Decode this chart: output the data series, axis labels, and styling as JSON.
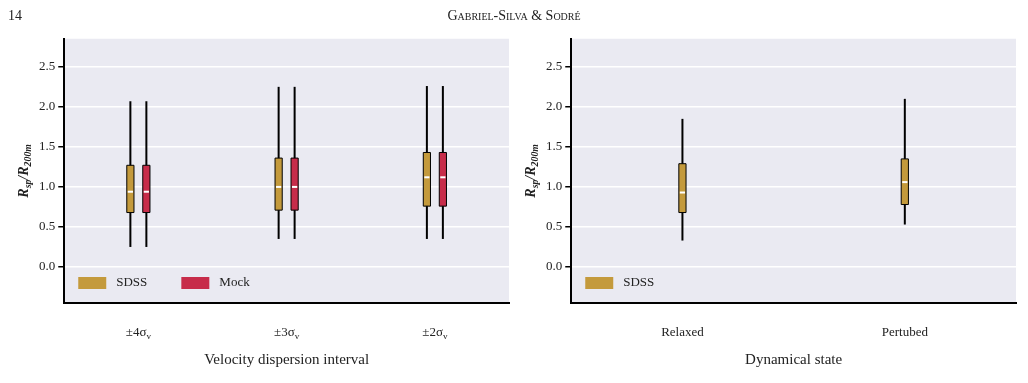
{
  "chart_data": [
    {
      "type": "box",
      "title": "Gabriel-Silva & Sodré",
      "annotations": [
        "14"
      ],
      "xlabel": "Velocity dispersion interval",
      "ylabel": "R$_{sp}$/R$_{200m}$",
      "categories": [
        "±4σ$_{v}$",
        "±3σ$_{v}$",
        "±2σ$_{v}$"
      ],
      "series": [
        {
          "name": "SDSS",
          "color": "#c49a3c",
          "boxes": [
            {
              "low": 0.25,
              "q1": 0.68,
              "median": 0.94,
              "q3": 1.27,
              "high": 2.07
            },
            {
              "low": 0.35,
              "q1": 0.71,
              "median": 1.0,
              "q3": 1.36,
              "high": 2.25
            },
            {
              "low": 0.35,
              "q1": 0.76,
              "median": 1.12,
              "q3": 1.43,
              "high": 2.26
            }
          ]
        },
        {
          "name": "Mock",
          "color": "#c72c4a",
          "boxes": [
            {
              "low": 0.25,
              "q1": 0.68,
              "median": 0.94,
              "q3": 1.27,
              "high": 2.07
            },
            {
              "low": 0.35,
              "q1": 0.71,
              "median": 1.0,
              "q3": 1.36,
              "high": 2.25
            },
            {
              "low": 0.35,
              "q1": 0.76,
              "median": 1.12,
              "q3": 1.43,
              "high": 2.26
            }
          ]
        }
      ],
      "ylim": [
        -0.45,
        2.85
      ],
      "yticks": [
        {
          "value": 0,
          "label": "0.0"
        },
        0.5,
        {
          "value": 1,
          "label": "1.0"
        },
        1.5,
        {
          "value": 2,
          "label": "2.0"
        },
        2.5
      ],
      "grid": "y",
      "legend": "bottom left"
    },
    {
      "type": "box",
      "xlabel": "Dynamical state",
      "ylabel": "R$_{sp}$/R$_{200m}$",
      "categories": [
        "Relaxed",
        "Pertubed"
      ],
      "series": [
        {
          "name": "SDSS",
          "color": "#c49a3c",
          "boxes": [
            {
              "low": 0.33,
              "q1": 0.68,
              "median": 0.93,
              "q3": 1.29,
              "high": 1.85
            },
            {
              "low": 0.53,
              "q1": 0.78,
              "median": 1.06,
              "q3": 1.35,
              "high": 2.1
            }
          ]
        }
      ],
      "ylim": [
        -0.45,
        2.85
      ],
      "yticks": [
        {
          "value": 0,
          "label": "0.0"
        },
        0.5,
        {
          "value": 1,
          "label": "1.0"
        },
        1.5,
        {
          "value": 2,
          "label": "2.0"
        },
        2.5
      ],
      "grid": "y",
      "legend": "bottom left"
    }
  ]
}
